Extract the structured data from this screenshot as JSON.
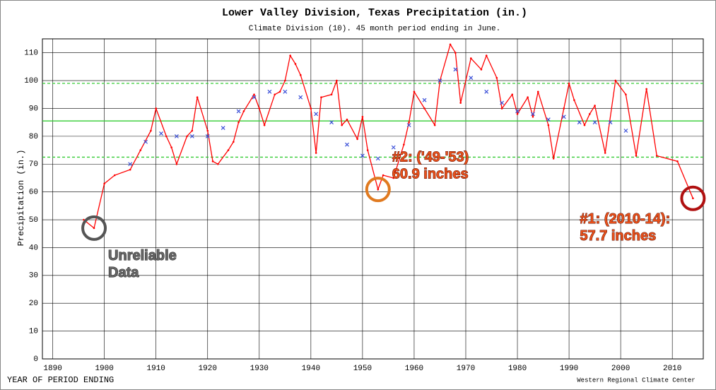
{
  "chart_data": {
    "type": "line",
    "title": "Lower Valley Division, Texas  Precipitation (in.)",
    "subtitle": "Climate Division (10). 45 month period ending in June.",
    "ylabel": "Precipitation (in.)",
    "xlabel": "YEAR OF PERIOD ENDING",
    "credit": "Western Regional Climate Center",
    "x": [
      1896,
      1898,
      1900,
      1902,
      1905,
      1907,
      1909,
      1910,
      1912,
      1913,
      1914,
      1916,
      1917,
      1918,
      1920,
      1921,
      1922,
      1924,
      1925,
      1926,
      1927,
      1929,
      1930,
      1931,
      1933,
      1934,
      1935,
      1936,
      1937,
      1938,
      1940,
      1941,
      1942,
      1944,
      1945,
      1946,
      1947,
      1949,
      1950,
      1951,
      1953,
      1954,
      1956,
      1958,
      1959,
      1960,
      1962,
      1964,
      1965,
      1967,
      1968,
      1969,
      1971,
      1973,
      1974,
      1976,
      1977,
      1979,
      1980,
      1982,
      1983,
      1984,
      1986,
      1987,
      1989,
      1990,
      1991,
      1993,
      1994,
      1995,
      1997,
      1999,
      2001,
      2003,
      2005,
      2007,
      2011,
      2014
    ],
    "series": [
      {
        "color": "#ff0000",
        "values": [
          50,
          47,
          63,
          66,
          68,
          75,
          82,
          90,
          80,
          76,
          70,
          80,
          82,
          94,
          82,
          71,
          70,
          75,
          78,
          85,
          89,
          95,
          90,
          84,
          95,
          96,
          100,
          109,
          106,
          102,
          90,
          74,
          94,
          95,
          100,
          84,
          86,
          79,
          87,
          75,
          60.9,
          66,
          65,
          77,
          85,
          96,
          90,
          84,
          100,
          113,
          110,
          92,
          108,
          104,
          109,
          101,
          90,
          95,
          88,
          94,
          87,
          96,
          84,
          72,
          90,
          99,
          93,
          84,
          88,
          91,
          74,
          100,
          95,
          73,
          97,
          73,
          71,
          57.7
        ]
      }
    ],
    "average": {
      "color": "#3a4fd8",
      "x": [
        1905,
        1908,
        1911,
        1914,
        1917,
        1920,
        1923,
        1926,
        1929,
        1932,
        1935,
        1938,
        1941,
        1944,
        1947,
        1950,
        1953,
        1956,
        1959,
        1962,
        1965,
        1968,
        1971,
        1974,
        1977,
        1980,
        1983,
        1986,
        1989,
        1992,
        1995,
        1998,
        2001
      ],
      "values": [
        70,
        78,
        81,
        80,
        80,
        80,
        83,
        89,
        94,
        96,
        96,
        94,
        88,
        85,
        77,
        73,
        72,
        76,
        84,
        93,
        100,
        104,
        101,
        96,
        92,
        89,
        88,
        86,
        87,
        85,
        85,
        85,
        82
      ]
    },
    "reference_lines": [
      {
        "value": 85.5,
        "color": "#33cc33",
        "dashed": false
      },
      {
        "value": 99,
        "color": "#33cc33",
        "dashed": true
      },
      {
        "value": 72.5,
        "color": "#33cc33",
        "dashed": true
      }
    ],
    "annotations": [
      {
        "lines": [
          "#1: (2010-14):",
          "57.7 inches"
        ],
        "color": "#b01010"
      },
      {
        "lines": [
          "#2: ('49-'53)",
          "60.9 inches"
        ],
        "color": "#e07a20"
      },
      {
        "lines": [
          "Unreliable",
          "Data"
        ],
        "color": "#555555"
      }
    ],
    "xlim": [
      1888,
      2016
    ],
    "xticks": [
      1890,
      1900,
      1910,
      1920,
      1930,
      1940,
      1950,
      1960,
      1970,
      1980,
      1990,
      2000,
      2010
    ],
    "ylim": [
      0,
      115
    ],
    "yticks": [
      0,
      10,
      20,
      30,
      40,
      50,
      60,
      70,
      80,
      90,
      100,
      110
    ],
    "grid": true
  }
}
